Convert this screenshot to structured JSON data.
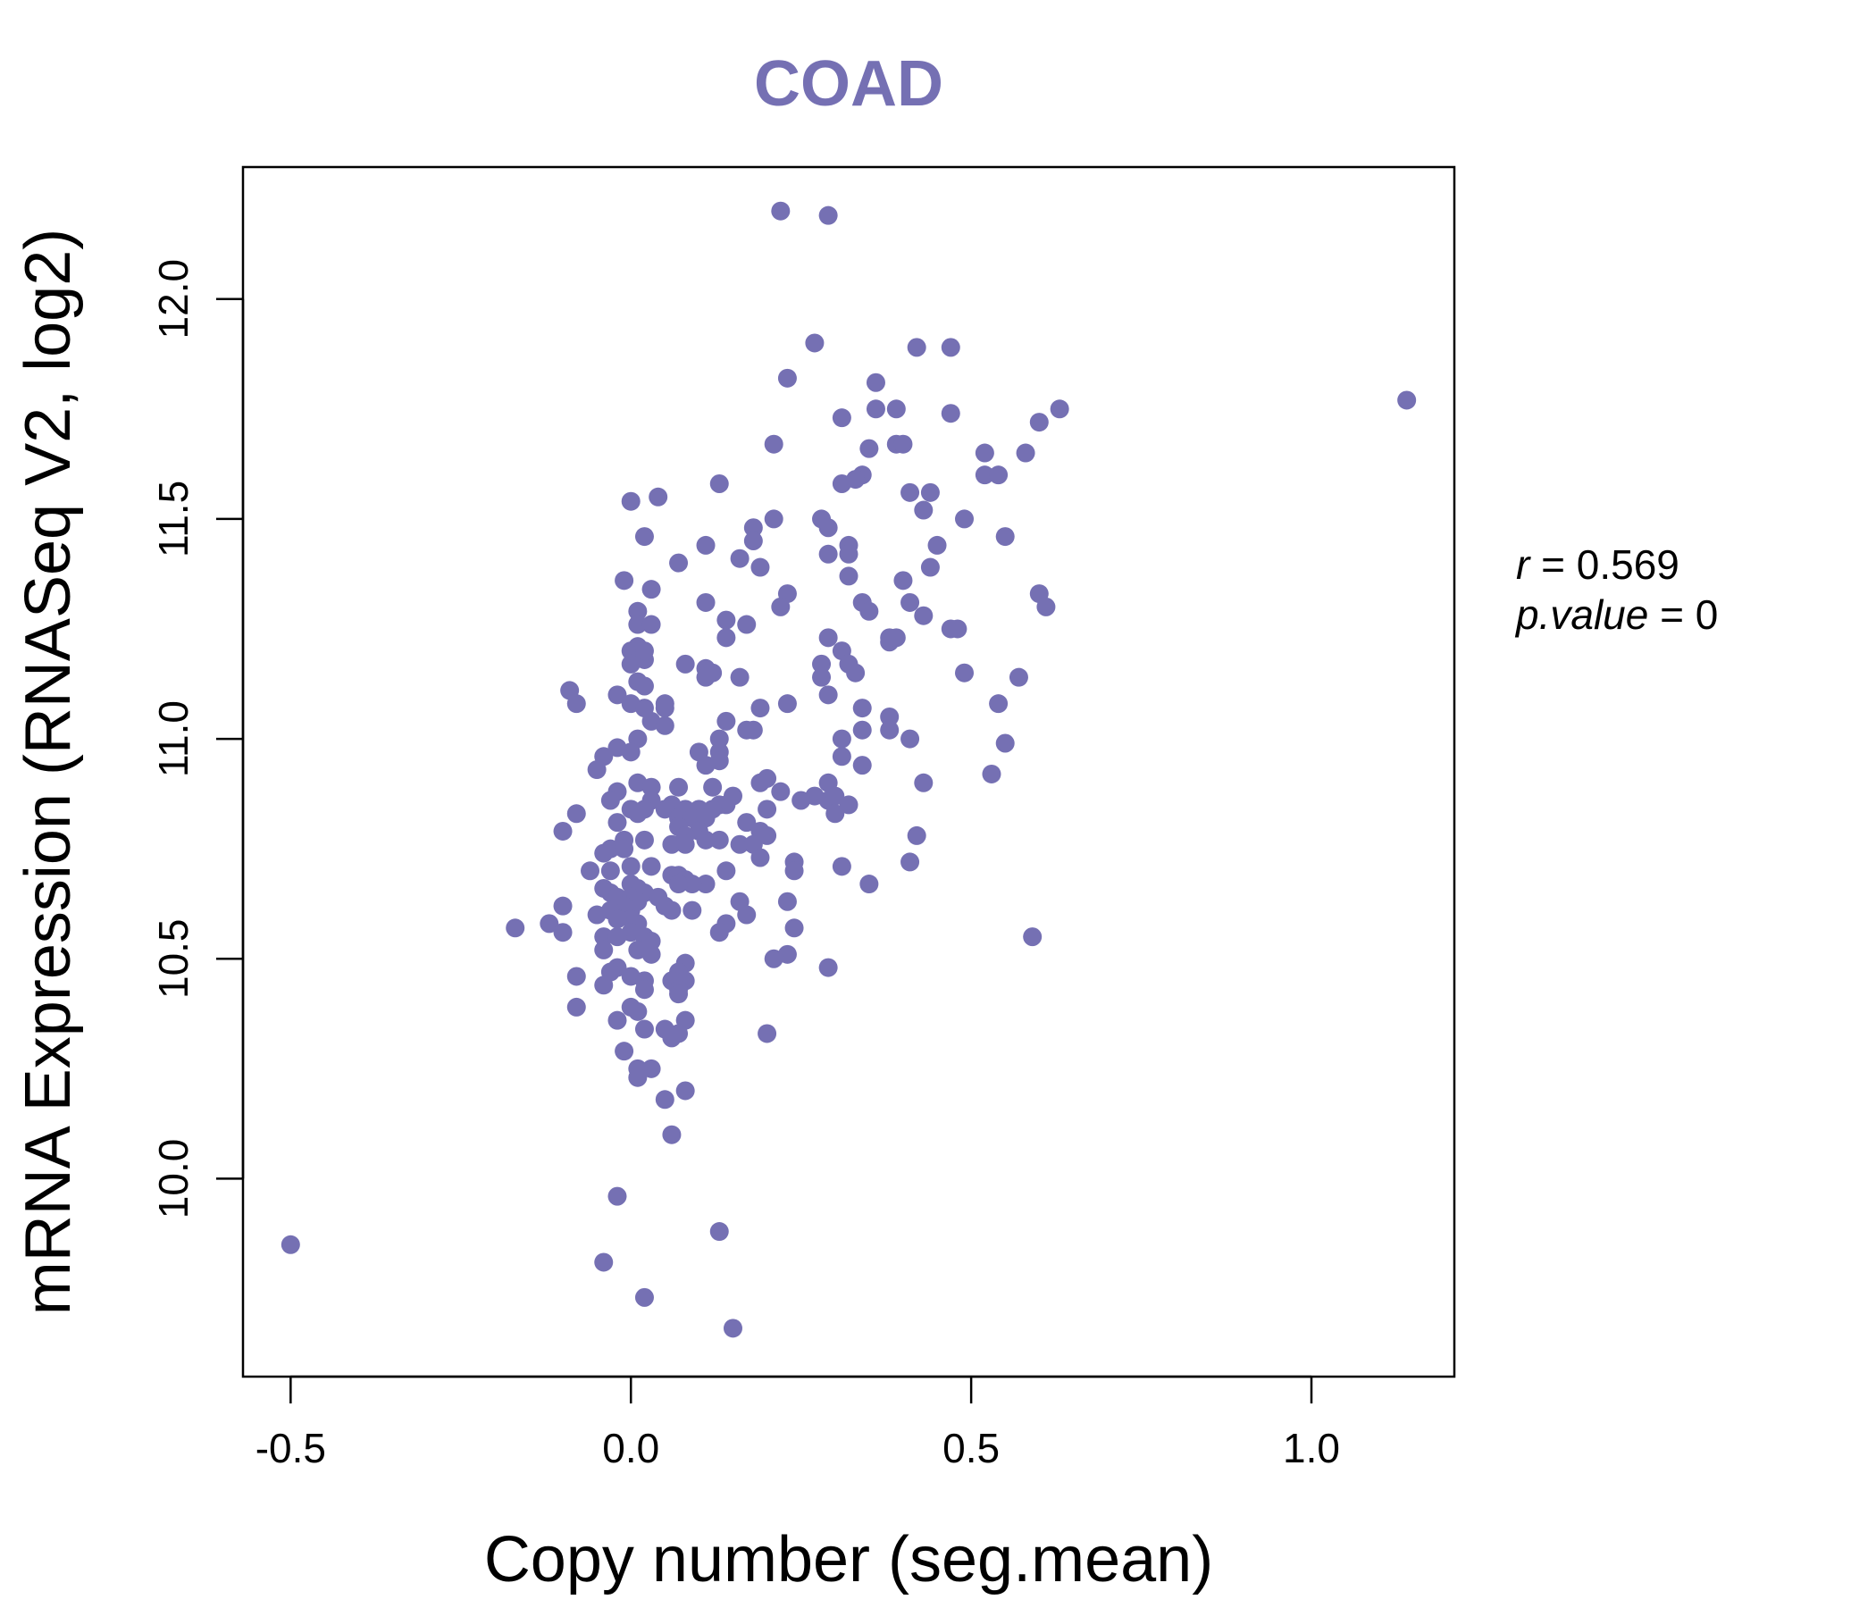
{
  "chart_data": {
    "type": "scatter",
    "title": "COAD",
    "xlabel": "Copy number (seg.mean)",
    "ylabel": "mRNA Expression (RNASeq V2, log2)",
    "xlim": [
      -0.57,
      1.21
    ],
    "ylim": [
      9.55,
      12.3
    ],
    "x_ticks": [
      {
        "value": -0.5,
        "label": "-0.5"
      },
      {
        "value": 0.0,
        "label": "0.0"
      },
      {
        "value": 0.5,
        "label": "0.5"
      },
      {
        "value": 1.0,
        "label": "1.0"
      }
    ],
    "y_ticks": [
      {
        "value": 10.0,
        "label": "10.0"
      },
      {
        "value": 10.5,
        "label": "10.5"
      },
      {
        "value": 11.0,
        "label": "11.0"
      },
      {
        "value": 11.5,
        "label": "11.5"
      },
      {
        "value": 12.0,
        "label": "12.0"
      }
    ],
    "grid": false,
    "legend": "none",
    "point_color": "#7570b3",
    "stats": {
      "r_label": "r",
      "r_value": "0.569",
      "p_label": "p.value",
      "p_value": "0"
    },
    "points": [
      [
        -0.5,
        9.85
      ],
      [
        1.14,
        11.77
      ],
      [
        -0.17,
        10.57
      ],
      [
        0.22,
        12.2
      ],
      [
        0.29,
        12.19
      ],
      [
        0.27,
        11.9
      ],
      [
        0.42,
        11.89
      ],
      [
        0.47,
        11.89
      ],
      [
        0.23,
        11.82
      ],
      [
        0.36,
        11.81
      ],
      [
        0.63,
        11.75
      ],
      [
        0.6,
        11.72
      ],
      [
        0.31,
        11.73
      ],
      [
        0.36,
        11.75
      ],
      [
        0.39,
        11.75
      ],
      [
        0.47,
        11.74
      ],
      [
        0.21,
        11.67
      ],
      [
        0.35,
        11.66
      ],
      [
        0.39,
        11.67
      ],
      [
        0.4,
        11.67
      ],
      [
        0.52,
        11.65
      ],
      [
        0.58,
        11.65
      ],
      [
        0.34,
        11.6
      ],
      [
        0.31,
        11.58
      ],
      [
        0.33,
        11.59
      ],
      [
        0.52,
        11.6
      ],
      [
        0.54,
        11.6
      ],
      [
        0.13,
        11.58
      ],
      [
        0.41,
        11.56
      ],
      [
        0.44,
        11.56
      ],
      [
        0.04,
        11.55
      ],
      [
        0.0,
        11.54
      ],
      [
        0.43,
        11.52
      ],
      [
        0.21,
        11.5
      ],
      [
        0.28,
        11.5
      ],
      [
        0.29,
        11.48
      ],
      [
        0.49,
        11.5
      ],
      [
        0.18,
        11.48
      ],
      [
        0.02,
        11.46
      ],
      [
        0.55,
        11.46
      ],
      [
        0.11,
        11.44
      ],
      [
        0.18,
        11.45
      ],
      [
        0.32,
        11.44
      ],
      [
        0.45,
        11.44
      ],
      [
        0.29,
        11.42
      ],
      [
        0.16,
        11.41
      ],
      [
        0.07,
        11.4
      ],
      [
        0.32,
        11.42
      ],
      [
        0.44,
        11.39
      ],
      [
        0.19,
        11.39
      ],
      [
        0.32,
        11.37
      ],
      [
        0.4,
        11.36
      ],
      [
        -0.01,
        11.36
      ],
      [
        0.03,
        11.34
      ],
      [
        0.23,
        11.33
      ],
      [
        0.6,
        11.33
      ],
      [
        0.61,
        11.3
      ],
      [
        0.11,
        11.31
      ],
      [
        0.22,
        11.3
      ],
      [
        0.34,
        11.31
      ],
      [
        0.41,
        11.31
      ],
      [
        0.01,
        11.29
      ],
      [
        0.35,
        11.29
      ],
      [
        0.43,
        11.28
      ],
      [
        0.14,
        11.27
      ],
      [
        0.01,
        11.26
      ],
      [
        0.03,
        11.26
      ],
      [
        0.17,
        11.26
      ],
      [
        0.47,
        11.25
      ],
      [
        0.48,
        11.25
      ],
      [
        0.14,
        11.23
      ],
      [
        0.29,
        11.23
      ],
      [
        0.38,
        11.22
      ],
      [
        0.38,
        11.23
      ],
      [
        0.39,
        11.23
      ],
      [
        0.01,
        11.21
      ],
      [
        0.0,
        11.2
      ],
      [
        0.01,
        11.19
      ],
      [
        0.02,
        11.18
      ],
      [
        0.02,
        11.2
      ],
      [
        0.31,
        11.2
      ],
      [
        0.0,
        11.17
      ],
      [
        0.08,
        11.17
      ],
      [
        0.11,
        11.16
      ],
      [
        0.28,
        11.17
      ],
      [
        0.32,
        11.17
      ],
      [
        0.12,
        11.15
      ],
      [
        0.11,
        11.14
      ],
      [
        0.16,
        11.14
      ],
      [
        0.28,
        11.14
      ],
      [
        0.33,
        11.15
      ],
      [
        0.49,
        11.15
      ],
      [
        0.57,
        11.14
      ],
      [
        0.01,
        11.13
      ],
      [
        -0.09,
        11.11
      ],
      [
        0.02,
        11.12
      ],
      [
        -0.02,
        11.1
      ],
      [
        0.29,
        11.1
      ],
      [
        0.0,
        11.08
      ],
      [
        0.05,
        11.08
      ],
      [
        -0.08,
        11.08
      ],
      [
        0.02,
        11.07
      ],
      [
        0.05,
        11.07
      ],
      [
        0.23,
        11.08
      ],
      [
        0.19,
        11.07
      ],
      [
        0.34,
        11.07
      ],
      [
        0.54,
        11.08
      ],
      [
        0.03,
        11.04
      ],
      [
        0.14,
        11.04
      ],
      [
        0.38,
        11.05
      ],
      [
        0.05,
        11.03
      ],
      [
        0.17,
        11.02
      ],
      [
        0.18,
        11.02
      ],
      [
        0.34,
        11.02
      ],
      [
        0.38,
        11.02
      ],
      [
        0.01,
        11.0
      ],
      [
        0.13,
        11.0
      ],
      [
        0.31,
        11.0
      ],
      [
        0.41,
        11.0
      ],
      [
        0.55,
        10.99
      ],
      [
        -0.02,
        10.98
      ],
      [
        0.0,
        10.97
      ],
      [
        0.1,
        10.97
      ],
      [
        0.13,
        10.97
      ],
      [
        0.31,
        10.96
      ],
      [
        -0.04,
        10.96
      ],
      [
        0.13,
        10.95
      ],
      [
        0.11,
        10.94
      ],
      [
        0.34,
        10.94
      ],
      [
        -0.05,
        10.93
      ],
      [
        0.53,
        10.92
      ],
      [
        0.2,
        10.91
      ],
      [
        0.01,
        10.9
      ],
      [
        0.03,
        10.89
      ],
      [
        0.07,
        10.89
      ],
      [
        0.12,
        10.89
      ],
      [
        0.19,
        10.9
      ],
      [
        0.29,
        10.9
      ],
      [
        0.43,
        10.9
      ],
      [
        -0.02,
        10.88
      ],
      [
        0.22,
        10.88
      ],
      [
        0.27,
        10.87
      ],
      [
        0.15,
        10.87
      ],
      [
        0.03,
        10.86
      ],
      [
        -0.03,
        10.86
      ],
      [
        0.13,
        10.85
      ],
      [
        0.06,
        10.85
      ],
      [
        0.14,
        10.85
      ],
      [
        0.25,
        10.86
      ],
      [
        0.29,
        10.86
      ],
      [
        0.3,
        10.87
      ],
      [
        0.32,
        10.85
      ],
      [
        0.0,
        10.84
      ],
      [
        0.02,
        10.84
      ],
      [
        0.05,
        10.84
      ],
      [
        0.08,
        10.84
      ],
      [
        0.1,
        10.84
      ],
      [
        0.12,
        10.84
      ],
      [
        0.2,
        10.84
      ],
      [
        -0.08,
        10.83
      ],
      [
        0.01,
        10.83
      ],
      [
        0.3,
        10.83
      ],
      [
        -0.02,
        10.81
      ],
      [
        0.07,
        10.82
      ],
      [
        0.09,
        10.82
      ],
      [
        0.11,
        10.82
      ],
      [
        0.17,
        10.81
      ],
      [
        0.07,
        10.8
      ],
      [
        0.1,
        10.79
      ],
      [
        0.19,
        10.79
      ],
      [
        -0.1,
        10.79
      ],
      [
        0.08,
        10.78
      ],
      [
        0.2,
        10.78
      ],
      [
        0.13,
        10.77
      ],
      [
        0.42,
        10.78
      ],
      [
        0.11,
        10.77
      ],
      [
        -0.01,
        10.77
      ],
      [
        0.02,
        10.77
      ],
      [
        0.06,
        10.76
      ],
      [
        0.08,
        10.76
      ],
      [
        0.16,
        10.76
      ],
      [
        0.18,
        10.76
      ],
      [
        -0.03,
        10.75
      ],
      [
        -0.01,
        10.75
      ],
      [
        -0.04,
        10.74
      ],
      [
        0.19,
        10.73
      ],
      [
        0.24,
        10.72
      ],
      [
        0.41,
        10.72
      ],
      [
        0.0,
        10.71
      ],
      [
        0.03,
        10.71
      ],
      [
        0.14,
        10.7
      ],
      [
        0.24,
        10.7
      ],
      [
        0.31,
        10.71
      ],
      [
        -0.06,
        10.7
      ],
      [
        -0.03,
        10.7
      ],
      [
        0.06,
        10.69
      ],
      [
        0.07,
        10.69
      ],
      [
        0.08,
        10.68
      ],
      [
        0.11,
        10.67
      ],
      [
        0.09,
        10.67
      ],
      [
        0.07,
        10.67
      ],
      [
        0.35,
        10.67
      ],
      [
        -0.04,
        10.66
      ],
      [
        0.0,
        10.67
      ],
      [
        0.01,
        10.66
      ],
      [
        -0.03,
        10.65
      ],
      [
        0.02,
        10.65
      ],
      [
        0.04,
        10.64
      ],
      [
        0.0,
        10.64
      ],
      [
        -0.02,
        10.64
      ],
      [
        0.16,
        10.63
      ],
      [
        0.23,
        10.63
      ],
      [
        0.01,
        10.63
      ],
      [
        -0.01,
        10.62
      ],
      [
        -0.1,
        10.62
      ],
      [
        0.05,
        10.62
      ],
      [
        0.0,
        10.61
      ],
      [
        0.06,
        10.61
      ],
      [
        0.09,
        10.61
      ],
      [
        -0.03,
        10.61
      ],
      [
        -0.05,
        10.6
      ],
      [
        0.17,
        10.6
      ],
      [
        0.0,
        10.59
      ],
      [
        -0.02,
        10.59
      ],
      [
        0.01,
        10.58
      ],
      [
        -0.12,
        10.58
      ],
      [
        0.14,
        10.58
      ],
      [
        0.24,
        10.57
      ],
      [
        0.13,
        10.56
      ],
      [
        -0.1,
        10.56
      ],
      [
        0.0,
        10.56
      ],
      [
        -0.04,
        10.55
      ],
      [
        0.02,
        10.55
      ],
      [
        -0.02,
        10.55
      ],
      [
        0.03,
        10.54
      ],
      [
        0.59,
        10.55
      ],
      [
        -0.04,
        10.52
      ],
      [
        0.01,
        10.52
      ],
      [
        0.03,
        10.51
      ],
      [
        0.23,
        10.51
      ],
      [
        0.21,
        10.5
      ],
      [
        0.08,
        10.49
      ],
      [
        -0.02,
        10.48
      ],
      [
        0.29,
        10.48
      ],
      [
        -0.03,
        10.47
      ],
      [
        0.07,
        10.47
      ],
      [
        -0.08,
        10.46
      ],
      [
        0.0,
        10.46
      ],
      [
        0.02,
        10.45
      ],
      [
        0.08,
        10.45
      ],
      [
        0.06,
        10.45
      ],
      [
        -0.04,
        10.44
      ],
      [
        0.07,
        10.43
      ],
      [
        0.02,
        10.43
      ],
      [
        0.07,
        10.42
      ],
      [
        0.0,
        10.39
      ],
      [
        -0.08,
        10.39
      ],
      [
        0.01,
        10.38
      ],
      [
        -0.02,
        10.36
      ],
      [
        0.08,
        10.36
      ],
      [
        0.02,
        10.34
      ],
      [
        0.05,
        10.34
      ],
      [
        0.07,
        10.33
      ],
      [
        0.06,
        10.32
      ],
      [
        0.2,
        10.33
      ],
      [
        -0.01,
        10.29
      ],
      [
        0.03,
        10.25
      ],
      [
        0.01,
        10.25
      ],
      [
        0.01,
        10.23
      ],
      [
        0.08,
        10.2
      ],
      [
        0.05,
        10.18
      ],
      [
        0.06,
        10.1
      ],
      [
        -0.02,
        9.96
      ],
      [
        0.13,
        9.88
      ],
      [
        -0.04,
        9.81
      ],
      [
        0.02,
        9.73
      ],
      [
        0.15,
        9.66
      ]
    ]
  }
}
